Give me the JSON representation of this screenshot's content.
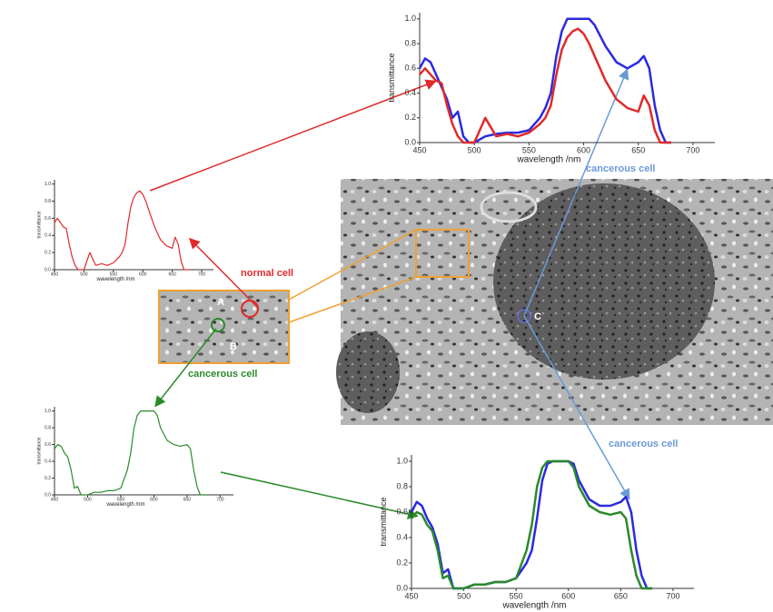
{
  "chart_data": [
    {
      "type": "line",
      "xlabel": "wavelength /nm",
      "ylabel": "transmittance",
      "x": [
        450,
        455,
        460,
        465,
        470,
        475,
        480,
        485,
        490,
        495,
        500,
        510,
        520,
        530,
        540,
        550,
        560,
        565,
        570,
        575,
        580,
        585,
        590,
        595,
        600,
        605,
        610,
        620,
        630,
        640,
        650,
        655,
        660,
        665,
        670,
        675,
        680
      ],
      "series": [
        {
          "color": "#2a2ae0",
          "values": [
            0.6,
            0.68,
            0.65,
            0.55,
            0.45,
            0.35,
            0.2,
            0.25,
            0.05,
            0.0,
            0.0,
            0.05,
            0.07,
            0.08,
            0.08,
            0.1,
            0.2,
            0.28,
            0.4,
            0.7,
            0.9,
            1.0,
            1.0,
            1.0,
            1.0,
            1.0,
            0.95,
            0.78,
            0.65,
            0.6,
            0.65,
            0.7,
            0.6,
            0.3,
            0.1,
            0.0,
            0.0
          ]
        },
        {
          "color": "#e02a2a",
          "values": [
            0.55,
            0.6,
            0.55,
            0.5,
            0.48,
            0.3,
            0.15,
            0.05,
            0.0,
            0.0,
            0.0,
            0.2,
            0.05,
            0.07,
            0.05,
            0.08,
            0.15,
            0.2,
            0.3,
            0.55,
            0.75,
            0.85,
            0.9,
            0.92,
            0.88,
            0.8,
            0.7,
            0.5,
            0.35,
            0.28,
            0.25,
            0.38,
            0.3,
            0.1,
            0.0,
            0.0,
            0.0
          ]
        }
      ],
      "xlim": [
        450,
        720
      ],
      "ylim": [
        0,
        1.05
      ],
      "xticks": [
        450,
        500,
        550,
        600,
        650,
        700
      ],
      "yticks": [
        {
          "value": 0,
          "label": "0.0"
        },
        0.2,
        0.4,
        0.6,
        0.8,
        {
          "value": 1,
          "label": "1.0"
        }
      ]
    },
    {
      "type": "line",
      "xlabel": "wavelength /nm",
      "ylabel": "transmittance",
      "x": [
        450,
        455,
        460,
        465,
        470,
        475,
        480,
        485,
        490,
        495,
        500,
        510,
        520,
        530,
        540,
        550,
        560,
        565,
        570,
        575,
        580,
        585,
        590,
        595,
        600,
        605,
        610,
        620,
        630,
        640,
        650,
        655,
        660,
        665,
        670,
        675,
        680
      ],
      "series": [
        {
          "color": "#e02a2a",
          "values": [
            0.55,
            0.6,
            0.55,
            0.5,
            0.48,
            0.3,
            0.15,
            0.05,
            0.0,
            0.0,
            0.0,
            0.2,
            0.05,
            0.07,
            0.05,
            0.08,
            0.15,
            0.2,
            0.3,
            0.55,
            0.75,
            0.85,
            0.9,
            0.92,
            0.88,
            0.8,
            0.7,
            0.5,
            0.35,
            0.28,
            0.25,
            0.38,
            0.3,
            0.1,
            0.0,
            0.0,
            0.0
          ]
        }
      ],
      "xlim": [
        450,
        720
      ],
      "ylim": [
        0,
        1.05
      ],
      "xticks": [
        450,
        500,
        550,
        600,
        650,
        700
      ],
      "yticks": [
        {
          "value": 0,
          "label": "0.0"
        },
        0.2,
        0.4,
        0.6,
        0.8,
        {
          "value": 1,
          "label": "1.0"
        }
      ]
    },
    {
      "type": "line",
      "xlabel": "wavelength /nm",
      "ylabel": "transmittance",
      "x": [
        450,
        455,
        460,
        465,
        470,
        475,
        480,
        485,
        490,
        495,
        500,
        510,
        520,
        530,
        540,
        550,
        560,
        565,
        570,
        575,
        580,
        585,
        590,
        595,
        600,
        605,
        610,
        620,
        630,
        640,
        650,
        655,
        660,
        665,
        670,
        675,
        680
      ],
      "series": [
        {
          "color": "#2a8a2a",
          "values": [
            0.55,
            0.6,
            0.58,
            0.5,
            0.45,
            0.3,
            0.08,
            0.1,
            0.0,
            0.0,
            0.0,
            0.03,
            0.03,
            0.05,
            0.05,
            0.08,
            0.3,
            0.5,
            0.8,
            0.95,
            1.0,
            1.0,
            1.0,
            1.0,
            1.0,
            0.95,
            0.8,
            0.65,
            0.6,
            0.58,
            0.6,
            0.55,
            0.3,
            0.1,
            0.0,
            0.0,
            0.0
          ]
        }
      ],
      "xlim": [
        450,
        720
      ],
      "ylim": [
        0,
        1.05
      ],
      "xticks": [
        450,
        500,
        550,
        600,
        650,
        700
      ],
      "yticks": [
        {
          "value": 0,
          "label": "0.0"
        },
        0.2,
        0.4,
        0.6,
        0.8,
        {
          "value": 1,
          "label": "1.0"
        }
      ]
    },
    {
      "type": "line",
      "xlabel": "wavelength /nm",
      "ylabel": "transmittance",
      "x": [
        450,
        455,
        460,
        465,
        470,
        475,
        480,
        485,
        490,
        495,
        500,
        510,
        520,
        530,
        540,
        550,
        560,
        565,
        570,
        575,
        580,
        585,
        590,
        595,
        600,
        605,
        610,
        620,
        630,
        640,
        650,
        655,
        660,
        665,
        670,
        675,
        680
      ],
      "series": [
        {
          "color": "#2a2ae0",
          "values": [
            0.6,
            0.68,
            0.65,
            0.55,
            0.48,
            0.35,
            0.12,
            0.15,
            0.0,
            0.0,
            0.0,
            0.03,
            0.03,
            0.05,
            0.05,
            0.08,
            0.2,
            0.3,
            0.55,
            0.85,
            0.98,
            1.0,
            1.0,
            1.0,
            1.0,
            0.98,
            0.85,
            0.7,
            0.65,
            0.65,
            0.68,
            0.72,
            0.6,
            0.3,
            0.1,
            0.0,
            0.0
          ]
        },
        {
          "color": "#2a8a2a",
          "values": [
            0.55,
            0.6,
            0.58,
            0.5,
            0.45,
            0.3,
            0.08,
            0.1,
            0.0,
            0.0,
            0.0,
            0.03,
            0.03,
            0.05,
            0.05,
            0.08,
            0.3,
            0.5,
            0.8,
            0.95,
            1.0,
            1.0,
            1.0,
            1.0,
            1.0,
            0.95,
            0.8,
            0.65,
            0.6,
            0.58,
            0.6,
            0.55,
            0.3,
            0.1,
            0.0,
            0.0,
            0.0
          ]
        }
      ],
      "xlim": [
        450,
        720
      ],
      "ylim": [
        0,
        1.05
      ],
      "xticks": [
        450,
        500,
        550,
        600,
        650,
        700
      ],
      "yticks": [
        {
          "value": 0,
          "label": "0.0"
        },
        0.2,
        0.4,
        0.6,
        0.8,
        {
          "value": 1,
          "label": "1.0"
        }
      ]
    }
  ],
  "annotations": [
    "normal cell",
    "cancerous cell",
    "cancerous cell",
    "cancerous cell",
    "A",
    "B",
    "C"
  ]
}
